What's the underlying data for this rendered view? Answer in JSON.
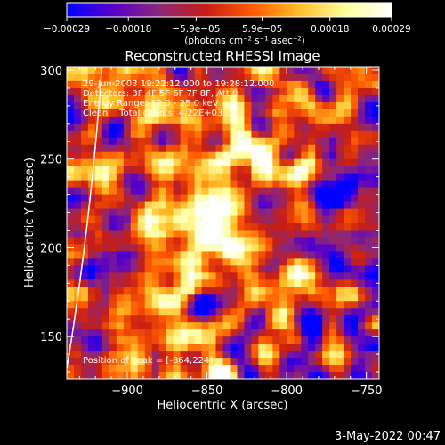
{
  "chart_data": {
    "type": "heatmap",
    "title": "Reconstructed RHESSI Image",
    "xlabel": "Heliocentric X (arcsec)",
    "ylabel": "Heliocentric Y (arcsec)",
    "xlim": [
      -938,
      -742
    ],
    "ylim": [
      126,
      302
    ],
    "x_ticks": [
      -900,
      -850,
      -800,
      -750
    ],
    "x_tick_labels": [
      "−900",
      "−850",
      "−800",
      "−750"
    ],
    "y_ticks": [
      150,
      200,
      250,
      300
    ],
    "y_tick_labels": [
      "150",
      "200",
      "250",
      "300"
    ],
    "colorbar": {
      "range": [
        -0.00029,
        0.00029
      ],
      "tick_values": [
        -0.00029,
        -0.00018,
        -5.9e-05,
        5.9e-05,
        0.00018,
        0.00029
      ],
      "tick_labels": [
        "−0.00029",
        "−0.00018",
        "−5.9e−05",
        "5.9e−05",
        "0.00018",
        "0.00029"
      ],
      "units_text": "(photons cm⁻² s⁻¹ asec⁻²)",
      "colors": [
        "#0000ff",
        "#5a00c8",
        "#8c2878",
        "#c81e14",
        "#ff5a00",
        "#ffbe28",
        "#ffff9a",
        "#ffffff"
      ]
    },
    "annotations": [
      "29-Jun-2003 19:22:12.000 to 19:28:12.000",
      "Detectors: 3F 4F 5F 6F 7F 8F, Att 0",
      "Energy Range: 12.0 - 25.0 keV",
      "Clean    Total counts: 4.22E+03"
    ],
    "peak_label": "Position of Peak = [-864,224]",
    "peak": {
      "x": -864,
      "y": 224
    },
    "limb": [
      [
        -938,
        132
      ],
      [
        -925,
        215
      ],
      [
        -916,
        302
      ]
    ],
    "grid": false,
    "legend": "none"
  },
  "footer_date": "3-May-2022 00:47"
}
